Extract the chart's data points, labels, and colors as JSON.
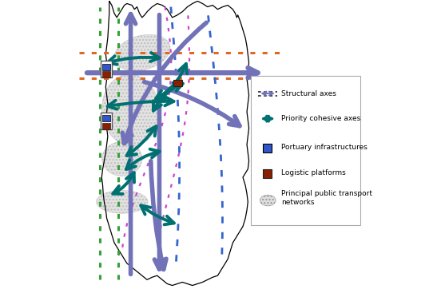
{
  "fig_width": 5.57,
  "fig_height": 3.62,
  "dpi": 100,
  "bg_color": "#ffffff",
  "structural_axes_color": "#7272b8",
  "cohesive_axes_color": "#007070",
  "orange_dotted_color": "#e06820",
  "green_dotted_color": "#38a038",
  "magenta_dotted_color": "#cc44cc",
  "blue_dotted_color": "#3366cc",
  "portuary_color": "#3355cc",
  "logistic_color": "#8b2000",
  "transport_network_color": "#c8c8c8",
  "legend_items": [
    {
      "label": "Structural axes"
    },
    {
      "label": "Priority cohesive axes"
    },
    {
      "label": "Portuary infrastructures"
    },
    {
      "label": "Logistic platforms"
    },
    {
      "label": "Principal public transport\nnetworks"
    }
  ],
  "map_xlim": [
    0,
    10
  ],
  "map_ylim": [
    0,
    10
  ]
}
